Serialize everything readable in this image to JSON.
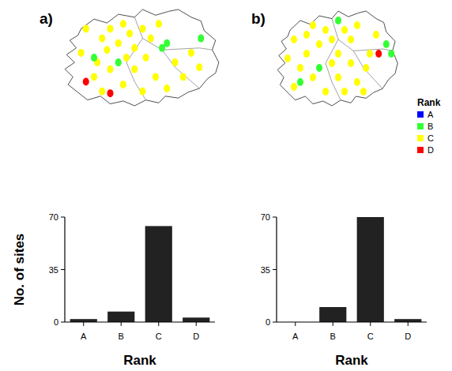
{
  "panel_labels": [
    "a)",
    "b)"
  ],
  "map_legend": {
    "title": "Rank",
    "entries": [
      {
        "label": "A",
        "color": "#0000ff"
      },
      {
        "label": "B",
        "color": "#33ff33"
      },
      {
        "label": "C",
        "color": "#ffff00"
      },
      {
        "label": "D",
        "color": "#ff0000"
      }
    ]
  },
  "chart_data": [
    {
      "type": "bar",
      "x_label": "Rank",
      "y_label": "No. of sites",
      "categories": [
        "A",
        "B",
        "C",
        "D"
      ],
      "values": [
        2,
        7,
        64,
        3
      ],
      "color": "#222222",
      "ylim": [
        0,
        70
      ],
      "yticks": [
        0,
        35,
        70
      ],
      "grid": false
    },
    {
      "type": "bar",
      "x_label": "Rank",
      "categories": [
        "A",
        "B",
        "C",
        "D"
      ],
      "values": [
        0,
        10,
        70,
        2
      ],
      "color": "#222222",
      "ylim": [
        0,
        70
      ],
      "yticks": [
        0,
        35,
        70
      ],
      "grid": false
    }
  ]
}
